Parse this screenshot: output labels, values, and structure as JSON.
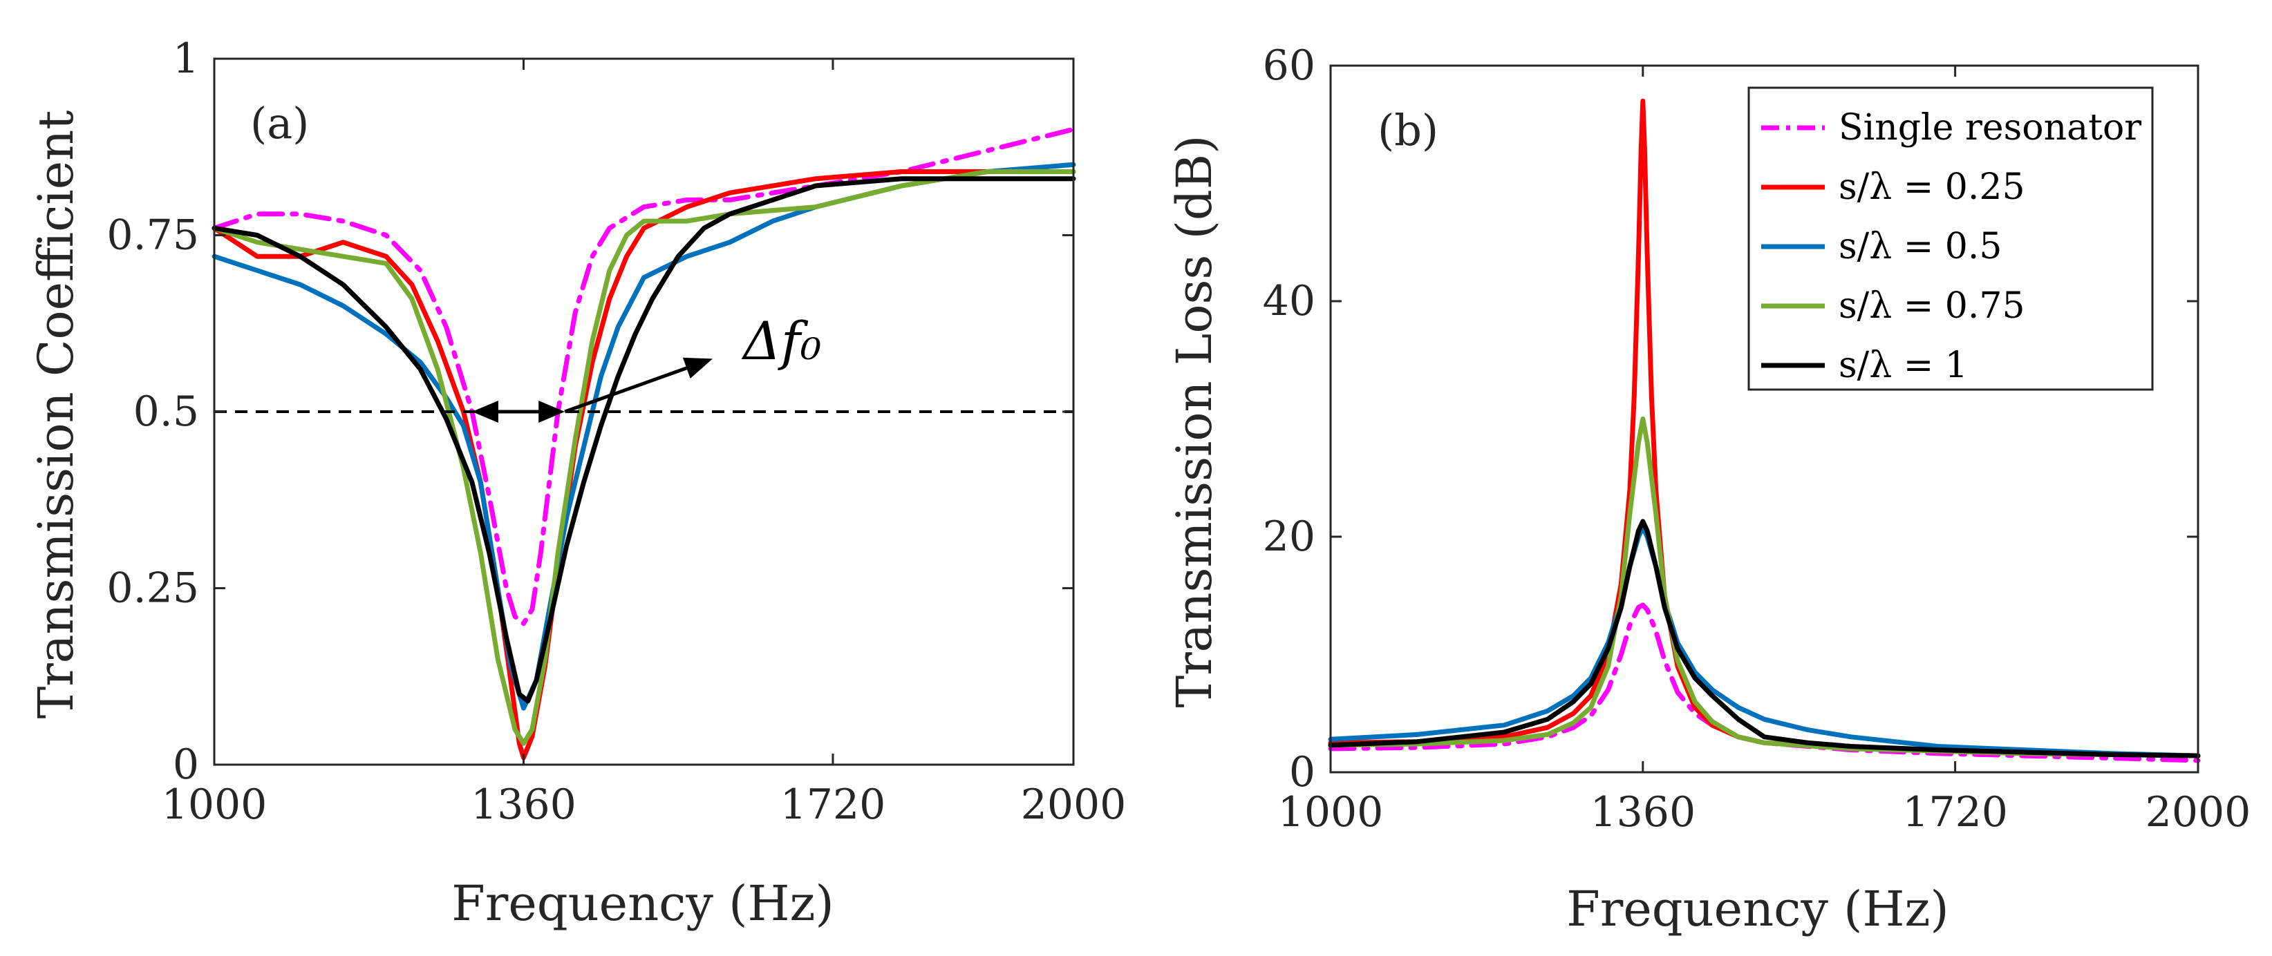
{
  "chart_data": [
    {
      "type": "line",
      "panel_label": "(a)",
      "xlabel": "Frequency (Hz)",
      "ylabel": "Transmission Coefficient",
      "xlim": [
        1000,
        2000
      ],
      "ylim": [
        0,
        1
      ],
      "xticks": [
        1000,
        1360,
        1720,
        2000
      ],
      "yticks": [
        0,
        0.25,
        0.5,
        0.75,
        1
      ],
      "xtick_labels": [
        "1000",
        "1360",
        "1720",
        "2000"
      ],
      "ytick_labels": [
        "0",
        "0.25",
        "0.5",
        "0.75",
        "1"
      ],
      "reference_line": {
        "y": 0.5,
        "style": "dashed",
        "color": "#000000"
      },
      "annotation": {
        "text": "Δf₀",
        "arrow_span_x": [
          1300,
          1408
        ],
        "pointer_from": [
          1408,
          0.5
        ],
        "pointer_to": [
          1580,
          0.575
        ]
      },
      "series": [
        {
          "name": "Single resonator",
          "color": "#ff00ff",
          "dash": "dashdot",
          "x": [
            1000,
            1050,
            1100,
            1150,
            1200,
            1240,
            1270,
            1300,
            1320,
            1340,
            1350,
            1360,
            1370,
            1380,
            1400,
            1420,
            1440,
            1460,
            1500,
            1550,
            1600,
            1700,
            1800,
            1900,
            2000
          ],
          "y": [
            0.76,
            0.78,
            0.78,
            0.77,
            0.75,
            0.7,
            0.62,
            0.5,
            0.38,
            0.25,
            0.21,
            0.2,
            0.22,
            0.3,
            0.5,
            0.64,
            0.72,
            0.76,
            0.79,
            0.8,
            0.8,
            0.82,
            0.84,
            0.87,
            0.9
          ]
        },
        {
          "name": "s/λ = 0.25",
          "color": "#ff0000",
          "dash": "solid",
          "x": [
            1000,
            1050,
            1100,
            1150,
            1200,
            1230,
            1260,
            1290,
            1310,
            1330,
            1345,
            1355,
            1360,
            1370,
            1385,
            1400,
            1420,
            1440,
            1460,
            1480,
            1500,
            1550,
            1600,
            1700,
            1800,
            1900,
            2000
          ],
          "y": [
            0.76,
            0.72,
            0.72,
            0.74,
            0.72,
            0.68,
            0.6,
            0.5,
            0.4,
            0.25,
            0.12,
            0.03,
            0.01,
            0.04,
            0.14,
            0.28,
            0.45,
            0.57,
            0.66,
            0.72,
            0.76,
            0.79,
            0.81,
            0.83,
            0.84,
            0.84,
            0.84
          ]
        },
        {
          "name": "s/λ = 0.5",
          "color": "#0072bd",
          "dash": "solid",
          "x": [
            1000,
            1050,
            1100,
            1150,
            1200,
            1240,
            1270,
            1290,
            1310,
            1330,
            1345,
            1360,
            1375,
            1390,
            1410,
            1430,
            1450,
            1470,
            1500,
            1550,
            1600,
            1650,
            1700,
            1800,
            1900,
            2000
          ],
          "y": [
            0.72,
            0.7,
            0.68,
            0.65,
            0.61,
            0.57,
            0.52,
            0.48,
            0.4,
            0.25,
            0.14,
            0.08,
            0.12,
            0.22,
            0.35,
            0.45,
            0.55,
            0.62,
            0.69,
            0.72,
            0.74,
            0.77,
            0.79,
            0.82,
            0.84,
            0.85
          ]
        },
        {
          "name": "s/λ = 0.75",
          "color": "#77ac30",
          "dash": "solid",
          "x": [
            1000,
            1050,
            1100,
            1150,
            1200,
            1230,
            1260,
            1290,
            1310,
            1330,
            1350,
            1360,
            1370,
            1385,
            1400,
            1420,
            1440,
            1460,
            1480,
            1500,
            1550,
            1600,
            1700,
            1800,
            1900,
            2000
          ],
          "y": [
            0.76,
            0.74,
            0.73,
            0.72,
            0.71,
            0.66,
            0.56,
            0.42,
            0.3,
            0.15,
            0.05,
            0.03,
            0.05,
            0.15,
            0.3,
            0.46,
            0.6,
            0.7,
            0.75,
            0.77,
            0.77,
            0.78,
            0.79,
            0.82,
            0.84,
            0.84
          ]
        },
        {
          "name": "s/λ = 1",
          "color": "#000000",
          "dash": "solid",
          "x": [
            1000,
            1050,
            1100,
            1150,
            1200,
            1240,
            1270,
            1300,
            1320,
            1340,
            1355,
            1365,
            1375,
            1390,
            1410,
            1430,
            1450,
            1470,
            1490,
            1510,
            1540,
            1570,
            1600,
            1650,
            1700,
            1800,
            1900,
            2000
          ],
          "y": [
            0.76,
            0.75,
            0.72,
            0.68,
            0.62,
            0.56,
            0.49,
            0.4,
            0.3,
            0.18,
            0.1,
            0.09,
            0.12,
            0.2,
            0.31,
            0.4,
            0.48,
            0.55,
            0.61,
            0.66,
            0.72,
            0.76,
            0.78,
            0.8,
            0.82,
            0.83,
            0.83,
            0.83
          ]
        }
      ]
    },
    {
      "type": "line",
      "panel_label": "(b)",
      "xlabel": "Frequency (Hz)",
      "ylabel": "Transmission Loss (dB)",
      "xlim": [
        1000,
        2000
      ],
      "ylim": [
        0,
        60
      ],
      "xticks": [
        1000,
        1360,
        1720,
        2000
      ],
      "yticks": [
        0,
        20,
        40,
        60
      ],
      "xtick_labels": [
        "1000",
        "1360",
        "1720",
        "2000"
      ],
      "ytick_labels": [
        "0",
        "20",
        "40",
        "60"
      ],
      "legend_position": "top-right",
      "legend": [
        {
          "label": "Single resonator",
          "color": "#ff00ff",
          "dash": "dashdot"
        },
        {
          "label": "s/λ = 0.25",
          "color": "#ff0000",
          "dash": "solid"
        },
        {
          "label": "s/λ = 0.5",
          "color": "#0072bd",
          "dash": "solid"
        },
        {
          "label": "s/λ = 0.75",
          "color": "#77ac30",
          "dash": "solid"
        },
        {
          "label": "s/λ = 1",
          "color": "#000000",
          "dash": "solid"
        }
      ],
      "series": [
        {
          "name": "Single resonator",
          "color": "#ff00ff",
          "dash": "dashdot",
          "x": [
            1000,
            1100,
            1200,
            1250,
            1280,
            1300,
            1320,
            1335,
            1345,
            1355,
            1360,
            1365,
            1375,
            1385,
            1400,
            1420,
            1440,
            1470,
            1500,
            1600,
            1700,
            1800,
            1900,
            2000
          ],
          "y": [
            2.0,
            2.1,
            2.4,
            3.0,
            3.8,
            4.8,
            7.0,
            10.0,
            12.5,
            14.0,
            14.2,
            13.8,
            12.0,
            9.5,
            6.8,
            5.0,
            4.0,
            3.0,
            2.5,
            1.9,
            1.6,
            1.4,
            1.2,
            1.0
          ]
        },
        {
          "name": "s/λ = 0.25",
          "color": "#ff0000",
          "dash": "solid",
          "x": [
            1000,
            1100,
            1200,
            1250,
            1280,
            1300,
            1320,
            1335,
            1345,
            1350,
            1355,
            1358,
            1360,
            1362,
            1365,
            1370,
            1375,
            1385,
            1400,
            1420,
            1440,
            1470,
            1500,
            1600,
            1700,
            1800,
            1900,
            2000
          ],
          "y": [
            2.5,
            2.6,
            3.0,
            3.8,
            5.0,
            6.5,
            10.0,
            16.0,
            24.0,
            32.0,
            44.0,
            53.0,
            57.0,
            53.0,
            44.0,
            32.0,
            24.0,
            15.0,
            9.0,
            5.5,
            4.0,
            3.0,
            2.5,
            2.1,
            1.8,
            1.6,
            1.5,
            1.4
          ]
        },
        {
          "name": "s/λ = 0.5",
          "color": "#0072bd",
          "dash": "solid",
          "x": [
            1000,
            1100,
            1200,
            1250,
            1280,
            1300,
            1320,
            1335,
            1345,
            1355,
            1360,
            1365,
            1375,
            1385,
            1400,
            1420,
            1440,
            1470,
            1500,
            1550,
            1600,
            1700,
            1800,
            1900,
            2000
          ],
          "y": [
            2.8,
            3.2,
            4.0,
            5.2,
            6.5,
            8.0,
            11.0,
            14.5,
            17.5,
            20.0,
            20.8,
            20.0,
            17.5,
            14.5,
            11.0,
            8.5,
            7.0,
            5.5,
            4.5,
            3.6,
            3.0,
            2.2,
            1.9,
            1.6,
            1.4
          ]
        },
        {
          "name": "s/λ = 0.75",
          "color": "#77ac30",
          "dash": "solid",
          "x": [
            1000,
            1100,
            1200,
            1250,
            1280,
            1300,
            1320,
            1335,
            1345,
            1355,
            1360,
            1365,
            1375,
            1385,
            1400,
            1420,
            1440,
            1470,
            1500,
            1600,
            1700,
            1800,
            1900,
            2000
          ],
          "y": [
            2.3,
            2.4,
            2.7,
            3.2,
            4.2,
            5.5,
            9.0,
            15.0,
            22.0,
            28.0,
            30.0,
            28.0,
            22.0,
            15.0,
            9.5,
            6.0,
            4.3,
            3.0,
            2.5,
            2.0,
            1.8,
            1.6,
            1.5,
            1.4
          ]
        },
        {
          "name": "s/λ = 1",
          "color": "#000000",
          "dash": "solid",
          "x": [
            1000,
            1100,
            1200,
            1250,
            1280,
            1300,
            1320,
            1335,
            1345,
            1355,
            1360,
            1365,
            1375,
            1385,
            1400,
            1420,
            1440,
            1470,
            1500,
            1550,
            1600,
            1700,
            1800,
            1900,
            2000
          ],
          "y": [
            2.3,
            2.6,
            3.4,
            4.5,
            6.0,
            7.5,
            10.5,
            14.0,
            17.5,
            20.5,
            21.3,
            20.5,
            17.5,
            14.0,
            10.5,
            8.0,
            6.5,
            4.5,
            3.0,
            2.5,
            2.2,
            1.9,
            1.7,
            1.5,
            1.4
          ]
        }
      ]
    }
  ]
}
